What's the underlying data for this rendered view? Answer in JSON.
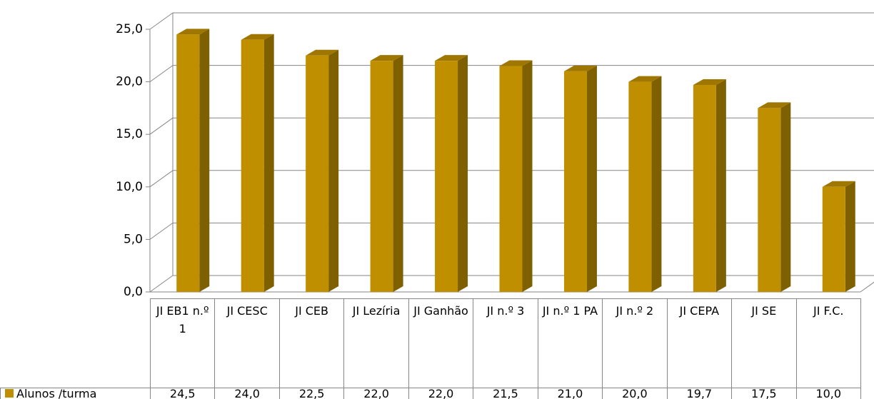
{
  "chart_data": {
    "type": "bar",
    "categories": [
      "JI EB1 n.º 1",
      "JI CESC",
      "JI CEB",
      "JI Lezíria",
      "JI Ganhão",
      "JI n.º 3",
      "JI n.º 1 PA",
      "JI n.º 2",
      "JI CEPA",
      "JI SE",
      "JI F.C."
    ],
    "series": [
      {
        "name": "Alunos /turma",
        "color": "#bf8f00",
        "values": [
          24.5,
          24.0,
          22.5,
          22.0,
          22.0,
          21.5,
          21.0,
          20.0,
          19.7,
          17.5,
          10.0
        ],
        "value_labels": [
          "24,5",
          "24,0",
          "22,5",
          "22,0",
          "22,0",
          "21,5",
          "21,0",
          "20,0",
          "19,7",
          "17,5",
          "10,0"
        ]
      }
    ],
    "ylim": [
      0,
      25
    ],
    "yticks": [
      {
        "value": 0,
        "label": "0,0"
      },
      {
        "value": 5,
        "label": "5,0"
      },
      {
        "value": 10,
        "label": "10,0"
      },
      {
        "value": 15,
        "label": "15,0"
      },
      {
        "value": 20,
        "label": "20,0"
      },
      {
        "value": 25,
        "label": "25,0"
      }
    ],
    "grid": true,
    "data_table": true
  }
}
